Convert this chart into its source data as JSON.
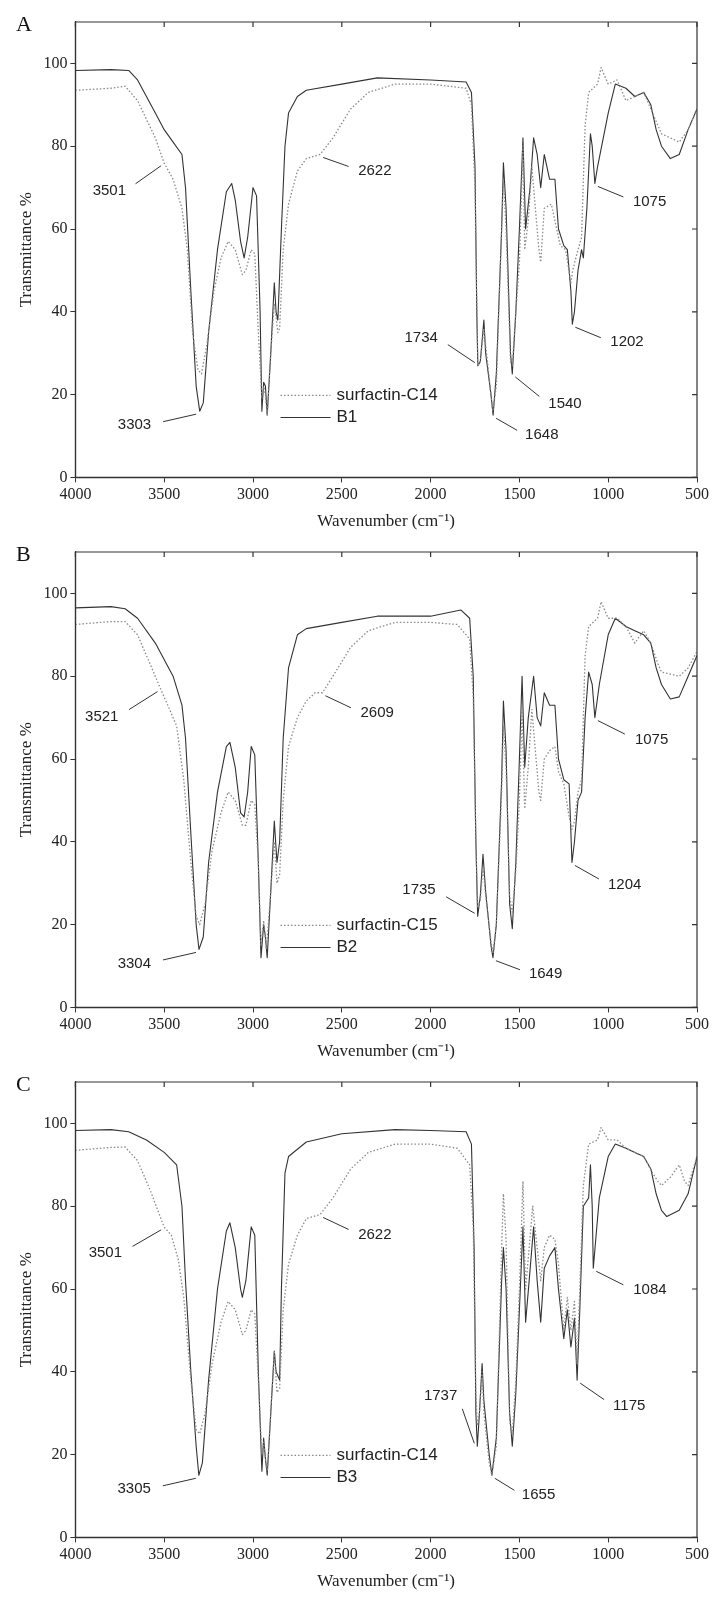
{
  "chart_data": [
    {
      "type": "line",
      "title": "A",
      "xlabel": "Wavenumber (cm⁻¹)",
      "ylabel": "Transmittance %",
      "xlim": [
        4000,
        500
      ],
      "xticks": [
        4000,
        3500,
        3000,
        2500,
        2000,
        1500,
        1000,
        500
      ],
      "ylim": [
        0,
        110
      ],
      "yticks": [
        0,
        20,
        40,
        60,
        80,
        100
      ],
      "grid": false,
      "legend": "bottom",
      "marker": "none",
      "series": [
        {
          "name": "surfactin-C14",
          "color": "#8a8a8a",
          "line_style": "dotted",
          "x": [
            4000,
            3800,
            3720,
            3650,
            3550,
            3501,
            3450,
            3400,
            3370,
            3340,
            3310,
            3290,
            3260,
            3220,
            3180,
            3140,
            3100,
            3060,
            3040,
            3010,
            2990,
            2970,
            2950,
            2940,
            2930,
            2920,
            2900,
            2880,
            2860,
            2850,
            2830,
            2800,
            2750,
            2700,
            2622,
            2550,
            2450,
            2350,
            2200,
            2000,
            1800,
            1770,
            1750,
            1734,
            1720,
            1700,
            1680,
            1650,
            1630,
            1600,
            1590,
            1575,
            1550,
            1540,
            1520,
            1500,
            1480,
            1470,
            1450,
            1430,
            1410,
            1390,
            1380,
            1360,
            1320,
            1290,
            1270,
            1240,
            1210,
            1200,
            1170,
            1150,
            1130,
            1110,
            1060,
            1040,
            1000,
            950,
            900,
            850,
            800,
            750,
            720,
            700,
            650,
            600,
            550,
            500
          ],
          "values": [
            93.5,
            94,
            94.5,
            91,
            82,
            76,
            72,
            65,
            55,
            35,
            26,
            25,
            32,
            45,
            53,
            57,
            55,
            49,
            50,
            55,
            54,
            35,
            19,
            22,
            20,
            15,
            30,
            42,
            35,
            36,
            55,
            66,
            74,
            77,
            78,
            82,
            89,
            93,
            95,
            95,
            94,
            90,
            70,
            27,
            28,
            36,
            28,
            16,
            22,
            60,
            72,
            60,
            28,
            27,
            40,
            52,
            80,
            55,
            62,
            75,
            65,
            55,
            52,
            65,
            66,
            60,
            56,
            55,
            47,
            50,
            55,
            58,
            85,
            93,
            95,
            99,
            95,
            96,
            91,
            92,
            93,
            88,
            85,
            83,
            82,
            81,
            84,
            89
          ]
        },
        {
          "name": "B1",
          "color": "#333333",
          "line_style": "solid",
          "x": [
            4000,
            3800,
            3700,
            3650,
            3550,
            3500,
            3450,
            3400,
            3380,
            3350,
            3320,
            3300,
            3280,
            3250,
            3200,
            3150,
            3120,
            3100,
            3070,
            3050,
            3030,
            3000,
            2980,
            2960,
            2950,
            2940,
            2930,
            2920,
            2900,
            2880,
            2870,
            2860,
            2840,
            2820,
            2800,
            2750,
            2700,
            2500,
            2300,
            2000,
            1800,
            1770,
            1750,
            1740,
            1734,
            1720,
            1700,
            1690,
            1660,
            1648,
            1630,
            1600,
            1590,
            1575,
            1550,
            1540,
            1520,
            1500,
            1480,
            1465,
            1440,
            1420,
            1400,
            1380,
            1360,
            1330,
            1300,
            1280,
            1250,
            1230,
            1210,
            1202,
            1190,
            1170,
            1150,
            1140,
            1120,
            1100,
            1090,
            1075,
            1060,
            1000,
            960,
            900,
            850,
            800,
            760,
            730,
            700,
            650,
            600,
            550,
            500
          ],
          "values": [
            98.3,
            98.5,
            98.3,
            96,
            88,
            84,
            81,
            78,
            70,
            45,
            22,
            16,
            18,
            35,
            55,
            69,
            71,
            67,
            57,
            53,
            58,
            70,
            68,
            40,
            16,
            23,
            22,
            15,
            30,
            47,
            40,
            38,
            60,
            80,
            88,
            92,
            93.5,
            95,
            96.5,
            96,
            95.5,
            93,
            75,
            40,
            27,
            28,
            38,
            30,
            20,
            15,
            25,
            60,
            76,
            65,
            30,
            25,
            40,
            60,
            82,
            60,
            70,
            82,
            78,
            70,
            78,
            72,
            72,
            60,
            56,
            55,
            45,
            37,
            40,
            50,
            55,
            53,
            65,
            83,
            80,
            71,
            75,
            88,
            95,
            94,
            92,
            93,
            90,
            84,
            80,
            77,
            78,
            84,
            89
          ]
        }
      ],
      "annotations": [
        {
          "text": "3501",
          "x": 3501,
          "y": 76
        },
        {
          "text": "3303",
          "x": 3303,
          "y": 16
        },
        {
          "text": "2622",
          "x": 2622,
          "y": 78
        },
        {
          "text": "1734",
          "x": 1734,
          "y": 27
        },
        {
          "text": "1648",
          "x": 1648,
          "y": 15
        },
        {
          "text": "1540",
          "x": 1540,
          "y": 25
        },
        {
          "text": "1202",
          "x": 1202,
          "y": 37
        },
        {
          "text": "1075",
          "x": 1075,
          "y": 71
        }
      ]
    },
    {
      "type": "line",
      "title": "B",
      "xlabel": "Wavenumber (cm⁻¹)",
      "ylabel": "Transmittance %",
      "xlim": [
        4000,
        500
      ],
      "xticks": [
        4000,
        3500,
        3000,
        2500,
        2000,
        1500,
        1000,
        500
      ],
      "ylim": [
        0,
        110
      ],
      "yticks": [
        0,
        20,
        40,
        60,
        80,
        100
      ],
      "grid": false,
      "legend": "bottom",
      "marker": "none",
      "series": [
        {
          "name": "surfactin-C15",
          "color": "#8a8a8a",
          "line_style": "dotted",
          "x": [
            4000,
            3800,
            3720,
            3650,
            3580,
            3521,
            3470,
            3430,
            3390,
            3350,
            3320,
            3300,
            3270,
            3230,
            3180,
            3140,
            3100,
            3060,
            3040,
            3010,
            2990,
            2970,
            2955,
            2940,
            2925,
            2905,
            2880,
            2865,
            2850,
            2830,
            2800,
            2750,
            2700,
            2650,
            2609,
            2550,
            2450,
            2350,
            2200,
            2000,
            1850,
            1780,
            1760,
            1745,
            1735,
            1720,
            1705,
            1690,
            1660,
            1649,
            1630,
            1600,
            1590,
            1575,
            1555,
            1540,
            1520,
            1500,
            1485,
            1470,
            1450,
            1430,
            1410,
            1390,
            1380,
            1360,
            1330,
            1300,
            1280,
            1250,
            1220,
            1204,
            1190,
            1170,
            1150,
            1130,
            1110,
            1060,
            1040,
            1000,
            950,
            900,
            850,
            800,
            760,
            720,
            700,
            650,
            600,
            550,
            500
          ],
          "values": [
            92.5,
            93.2,
            93.2,
            90,
            83,
            77,
            72,
            68,
            55,
            35,
            22,
            20,
            25,
            38,
            47,
            52,
            50,
            44,
            44,
            50,
            49,
            35,
            15,
            21,
            14,
            25,
            40,
            30,
            32,
            50,
            63,
            70,
            74,
            76,
            76,
            80,
            87,
            91,
            93,
            93,
            92.5,
            89,
            75,
            40,
            24,
            26,
            34,
            27,
            16,
            13,
            20,
            52,
            68,
            58,
            27,
            23,
            33,
            50,
            72,
            48,
            58,
            72,
            62,
            52,
            50,
            60,
            62,
            63,
            57,
            54,
            46,
            43,
            45,
            52,
            55,
            85,
            92,
            94,
            98,
            94,
            94,
            92,
            88,
            91,
            88,
            83,
            81,
            80.5,
            80,
            82,
            86
          ]
        },
        {
          "name": "B2",
          "color": "#333333",
          "line_style": "solid",
          "x": [
            4000,
            3800,
            3720,
            3650,
            3550,
            3450,
            3400,
            3380,
            3350,
            3320,
            3304,
            3280,
            3250,
            3200,
            3150,
            3130,
            3100,
            3070,
            3050,
            3030,
            3010,
            2990,
            2970,
            2955,
            2940,
            2930,
            2920,
            2900,
            2880,
            2865,
            2850,
            2830,
            2800,
            2750,
            2700,
            2500,
            2300,
            2000,
            1830,
            1780,
            1760,
            1745,
            1735,
            1720,
            1705,
            1690,
            1660,
            1649,
            1630,
            1600,
            1590,
            1575,
            1555,
            1540,
            1520,
            1500,
            1485,
            1470,
            1450,
            1420,
            1400,
            1380,
            1360,
            1330,
            1300,
            1280,
            1250,
            1220,
            1204,
            1190,
            1170,
            1150,
            1130,
            1110,
            1090,
            1075,
            1050,
            1000,
            960,
            900,
            850,
            800,
            760,
            730,
            700,
            650,
            600,
            550,
            500
          ],
          "values": [
            96.5,
            96.8,
            96.3,
            94,
            88,
            80,
            73,
            65,
            42,
            20,
            14,
            17,
            35,
            52,
            63,
            64,
            58,
            47,
            46,
            52,
            63,
            61,
            35,
            12,
            20,
            17,
            12,
            28,
            45,
            35,
            40,
            65,
            82,
            90,
            91.5,
            93,
            94.5,
            94.5,
            96,
            94,
            80,
            40,
            22,
            27,
            37,
            28,
            15,
            12,
            20,
            55,
            74,
            62,
            25,
            19,
            35,
            60,
            80,
            58,
            70,
            80,
            70,
            68,
            76,
            73,
            73,
            60,
            55,
            54,
            35,
            40,
            50,
            52,
            70,
            81,
            78,
            70,
            78,
            90,
            94,
            92,
            91,
            90,
            88,
            82,
            78,
            74.5,
            75,
            80,
            85
          ]
        }
      ],
      "annotations": [
        {
          "text": "3521",
          "x": 3521,
          "y": 77
        },
        {
          "text": "3304",
          "x": 3304,
          "y": 14
        },
        {
          "text": "2609",
          "x": 2609,
          "y": 76
        },
        {
          "text": "1735",
          "x": 1735,
          "y": 22
        },
        {
          "text": "1649",
          "x": 1649,
          "y": 12
        },
        {
          "text": "1204",
          "x": 1204,
          "y": 35
        },
        {
          "text": "1075",
          "x": 1075,
          "y": 70
        }
      ]
    },
    {
      "type": "line",
      "title": "C",
      "xlabel": "Wavenumber (cm⁻¹)",
      "ylabel": "Transmittance %",
      "xlim": [
        4000,
        500
      ],
      "xticks": [
        4000,
        3500,
        3000,
        2500,
        2000,
        1500,
        1000,
        500
      ],
      "ylim": [
        0,
        110
      ],
      "yticks": [
        0,
        20,
        40,
        60,
        80,
        100
      ],
      "grid": false,
      "legend": "bottom",
      "marker": "none",
      "series": [
        {
          "name": "surfactin-C14",
          "color": "#8a8a8a",
          "line_style": "dotted",
          "x": [
            4000,
            3800,
            3720,
            3650,
            3580,
            3501,
            3460,
            3420,
            3390,
            3350,
            3320,
            3300,
            3270,
            3230,
            3180,
            3140,
            3100,
            3060,
            3040,
            3010,
            2990,
            2970,
            2950,
            2940,
            2930,
            2920,
            2900,
            2880,
            2865,
            2850,
            2830,
            2800,
            2750,
            2700,
            2622,
            2550,
            2450,
            2350,
            2200,
            2000,
            1850,
            1780,
            1760,
            1745,
            1737,
            1725,
            1710,
            1700,
            1670,
            1655,
            1630,
            1600,
            1590,
            1575,
            1555,
            1540,
            1520,
            1500,
            1480,
            1465,
            1445,
            1425,
            1400,
            1380,
            1360,
            1330,
            1300,
            1280,
            1250,
            1230,
            1210,
            1190,
            1175,
            1160,
            1140,
            1110,
            1060,
            1040,
            1000,
            950,
            900,
            850,
            800,
            750,
            720,
            700,
            650,
            600,
            570,
            550,
            500
          ],
          "values": [
            93.5,
            94.2,
            94.3,
            91,
            84,
            75,
            73,
            67,
            58,
            38,
            26,
            25,
            30,
            42,
            52,
            57,
            55,
            49,
            50,
            55,
            54,
            38,
            20,
            23,
            19,
            16,
            30,
            45,
            35,
            36,
            55,
            66,
            73,
            77,
            78,
            82,
            89,
            93,
            95,
            95,
            94,
            90,
            75,
            35,
            27,
            30,
            40,
            30,
            18,
            15,
            22,
            70,
            83,
            72,
            28,
            25,
            38,
            60,
            86,
            60,
            70,
            80,
            70,
            62,
            70,
            73,
            72,
            66,
            50,
            58,
            50,
            57,
            42,
            60,
            85,
            95,
            96,
            99,
            96,
            96,
            94,
            93,
            92,
            88,
            86,
            85,
            87,
            90,
            86,
            85,
            92
          ]
        },
        {
          "name": "B3",
          "color": "#333333",
          "line_style": "solid",
          "x": [
            4000,
            3800,
            3700,
            3600,
            3500,
            3430,
            3400,
            3380,
            3350,
            3320,
            3305,
            3285,
            3250,
            3200,
            3150,
            3130,
            3100,
            3070,
            3060,
            3040,
            3010,
            2990,
            2970,
            2950,
            2940,
            2930,
            2920,
            2900,
            2880,
            2870,
            2850,
            2840,
            2820,
            2800,
            2700,
            2500,
            2200,
            2000,
            1800,
            1770,
            1755,
            1745,
            1737,
            1725,
            1710,
            1700,
            1670,
            1655,
            1630,
            1600,
            1590,
            1575,
            1555,
            1540,
            1520,
            1500,
            1480,
            1465,
            1445,
            1420,
            1400,
            1380,
            1360,
            1330,
            1300,
            1280,
            1250,
            1230,
            1210,
            1190,
            1175,
            1160,
            1140,
            1110,
            1100,
            1090,
            1084,
            1070,
            1050,
            1000,
            960,
            900,
            850,
            800,
            760,
            730,
            700,
            670,
            600,
            550,
            500
          ],
          "values": [
            98.3,
            98.5,
            98,
            96,
            93,
            90,
            80,
            62,
            40,
            22,
            15,
            18,
            38,
            60,
            74,
            76,
            70,
            60,
            58,
            62,
            75,
            73,
            40,
            16,
            24,
            19,
            15,
            30,
            45,
            40,
            38,
            60,
            88,
            92,
            95.5,
            97.5,
            98.5,
            98.3,
            98,
            95,
            70,
            30,
            22,
            30,
            42,
            33,
            20,
            15,
            24,
            62,
            70,
            60,
            30,
            22,
            35,
            55,
            75,
            52,
            62,
            75,
            62,
            52,
            65,
            68,
            70,
            60,
            48,
            55,
            46,
            53,
            38,
            55,
            80,
            82,
            90,
            80,
            65,
            72,
            82,
            92,
            95,
            94,
            93,
            92,
            89,
            83,
            79,
            77.5,
            79,
            83,
            92
          ]
        }
      ],
      "annotations": [
        {
          "text": "3501",
          "x": 3501,
          "y": 75
        },
        {
          "text": "3305",
          "x": 3305,
          "y": 15
        },
        {
          "text": "2622",
          "x": 2622,
          "y": 78
        },
        {
          "text": "1737",
          "x": 1737,
          "y": 22
        },
        {
          "text": "1655",
          "x": 1655,
          "y": 15
        },
        {
          "text": "1175",
          "x": 1175,
          "y": 38
        },
        {
          "text": "1084",
          "x": 1084,
          "y": 65
        }
      ]
    }
  ]
}
